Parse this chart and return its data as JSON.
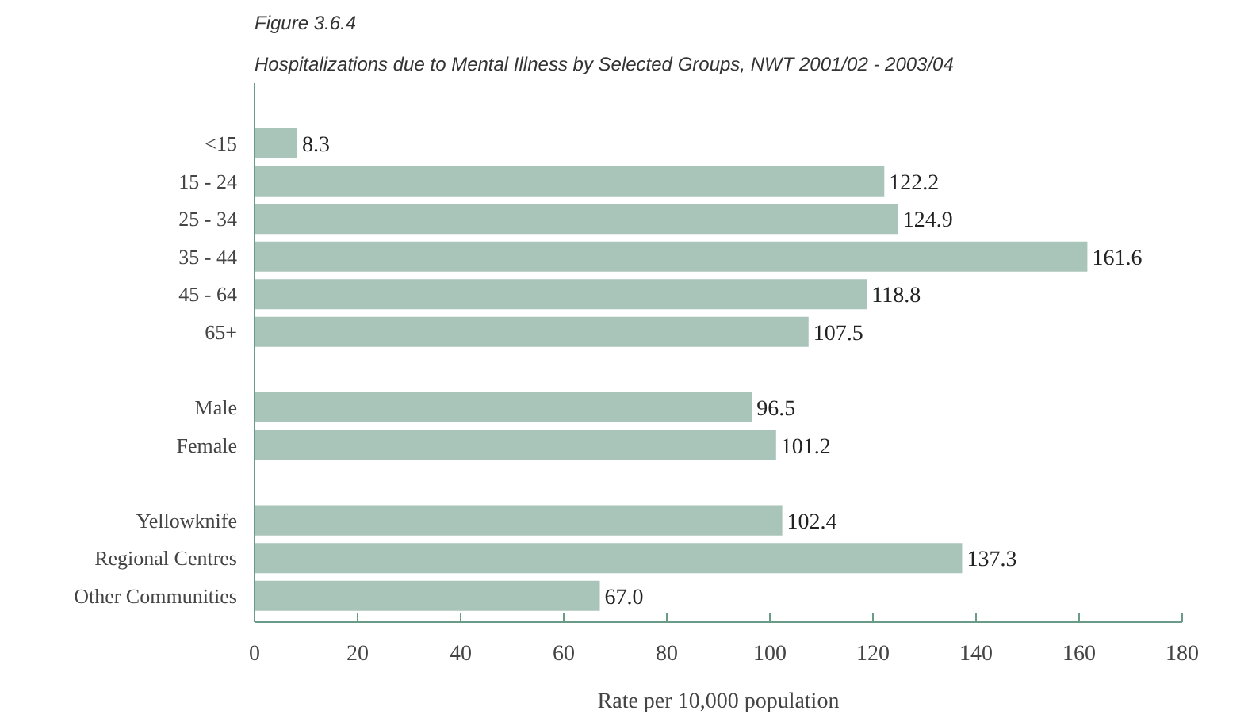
{
  "chart_data": {
    "type": "bar",
    "orientation": "horizontal",
    "title": "Figure 3.6.4",
    "subtitle": "Hospitalizations due to Mental Illness by Selected Groups, NWT 2001/02 - 2003/04",
    "xlabel": "Rate per 10,000 population",
    "categories": [
      "<15",
      "15 - 24",
      "25 - 34",
      "35 - 44",
      "45 - 64",
      "65+",
      null,
      "Male",
      "Female",
      null,
      "Yellowknife",
      "Regional Centres",
      "Other Communities"
    ],
    "values": [
      8.3,
      122.2,
      124.9,
      161.6,
      118.8,
      107.5,
      null,
      96.5,
      101.2,
      null,
      102.4,
      137.3,
      67.0
    ],
    "value_labels": [
      "8.3",
      "122.2",
      "124.9",
      "161.6",
      "118.8",
      "107.5",
      null,
      "96.5",
      "101.2",
      null,
      "102.4",
      "137.3",
      "67.0"
    ],
    "color": "#a9c4b8",
    "xlim": [
      0,
      180
    ],
    "xticks": [
      0,
      20,
      40,
      60,
      80,
      100,
      120,
      140,
      160,
      180
    ],
    "grid": false
  }
}
